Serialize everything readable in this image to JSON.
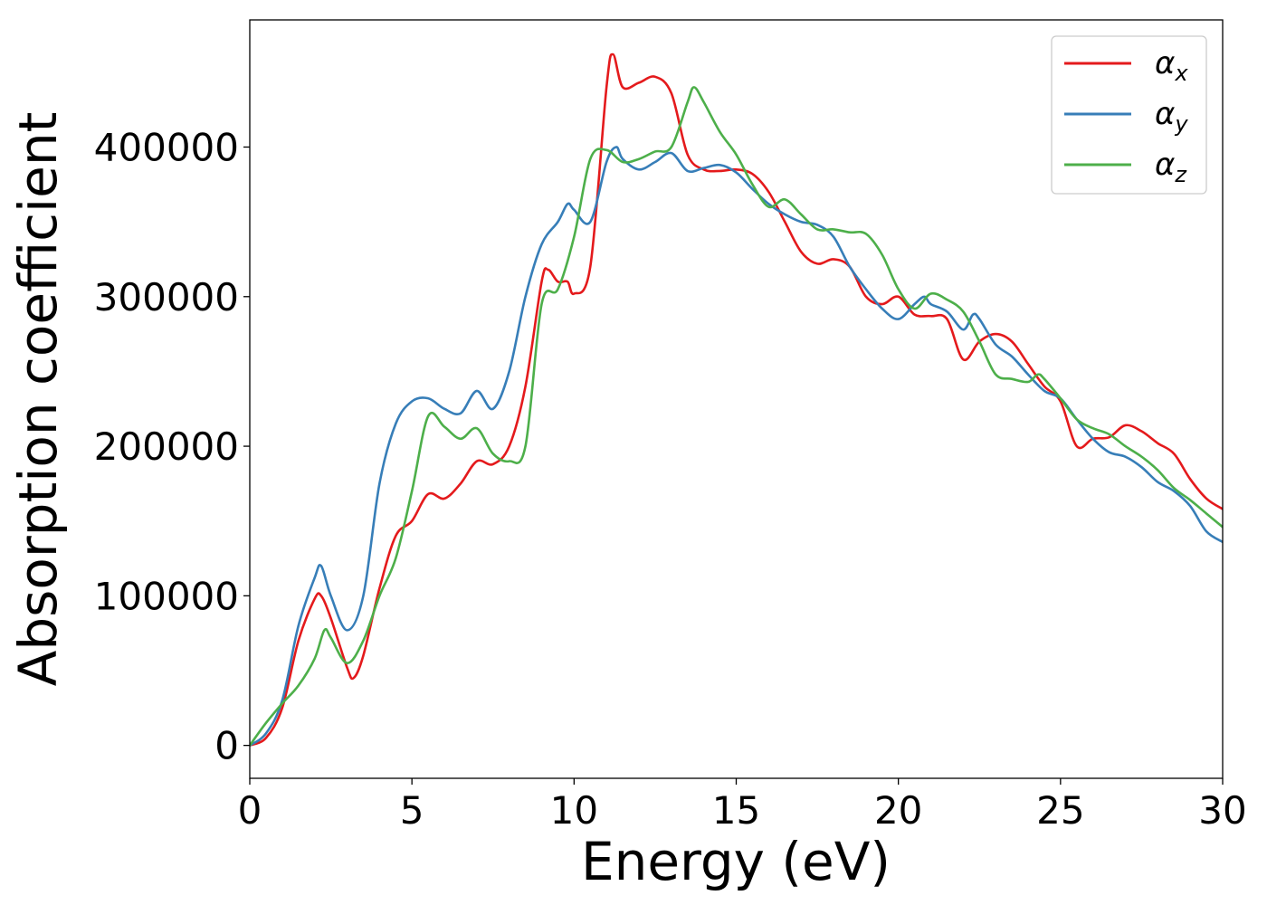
{
  "chart_data": {
    "type": "line",
    "title": "",
    "xlabel": "Energy (eV)",
    "ylabel": "Absorption coefficient",
    "xlim": [
      0,
      30
    ],
    "ylim": [
      -22000,
      485000
    ],
    "xticks": [
      0,
      5,
      10,
      15,
      20,
      25,
      30
    ],
    "yticks": [
      0,
      100000,
      200000,
      300000,
      400000
    ],
    "xtick_labels": [
      "0",
      "5",
      "10",
      "15",
      "20",
      "25",
      "30"
    ],
    "ytick_labels": [
      "0",
      "100000",
      "200000",
      "300000",
      "400000"
    ],
    "grid": false,
    "legend": {
      "position": "top-right"
    },
    "series": [
      {
        "name": "α",
        "sub": "x",
        "color": "#e41a1c",
        "x": [
          0,
          0.5,
          1,
          1.5,
          2,
          2.2,
          2.5,
          3,
          3.2,
          3.5,
          4,
          4.5,
          5,
          5.5,
          6,
          6.5,
          7,
          7.5,
          8,
          8.5,
          9,
          9.2,
          9.5,
          9.8,
          10,
          10.5,
          11,
          11.2,
          11.5,
          12,
          12.5,
          13,
          13.5,
          14,
          14.5,
          15,
          15.5,
          16,
          16.5,
          17,
          17.5,
          18,
          18.5,
          19,
          19.5,
          20,
          20.5,
          21,
          21.5,
          22,
          22.5,
          23,
          23.5,
          24,
          24.5,
          25,
          25.5,
          26,
          26.5,
          27,
          27.5,
          28,
          28.5,
          29,
          29.5,
          30
        ],
        "y": [
          0,
          5000,
          25000,
          70000,
          98000,
          100000,
          85000,
          52000,
          45000,
          60000,
          105000,
          140000,
          150000,
          168000,
          165000,
          175000,
          190000,
          188000,
          200000,
          240000,
          310000,
          318000,
          310000,
          310000,
          302000,
          320000,
          440000,
          462000,
          440000,
          443000,
          447000,
          436000,
          395000,
          385000,
          384000,
          385000,
          382000,
          370000,
          350000,
          330000,
          322000,
          325000,
          320000,
          300000,
          295000,
          300000,
          288000,
          287000,
          285000,
          258000,
          270000,
          275000,
          270000,
          255000,
          240000,
          230000,
          200000,
          205000,
          206000,
          214000,
          210000,
          202000,
          195000,
          178000,
          165000,
          158000
        ]
      },
      {
        "name": "α",
        "sub": "y",
        "color": "#377eb8",
        "x": [
          0,
          0.5,
          1,
          1.5,
          2,
          2.2,
          2.5,
          3,
          3.5,
          4,
          4.5,
          5,
          5.5,
          6,
          6.5,
          7,
          7.5,
          8,
          8.5,
          9,
          9.5,
          9.8,
          10,
          10.5,
          11,
          11.3,
          11.5,
          12,
          12.5,
          13,
          13.5,
          14,
          14.5,
          15,
          15.5,
          16,
          16.5,
          17,
          17.5,
          18,
          18.5,
          19,
          19.5,
          20,
          20.5,
          20.8,
          21,
          21.5,
          22,
          22.3,
          22.5,
          23,
          23.5,
          24,
          24.5,
          25,
          25.5,
          26,
          26.5,
          27,
          27.5,
          28,
          28.5,
          29,
          29.5,
          30
        ],
        "y": [
          0,
          8000,
          30000,
          80000,
          112000,
          120000,
          100000,
          77000,
          100000,
          175000,
          215000,
          230000,
          232000,
          225000,
          222000,
          237000,
          225000,
          250000,
          300000,
          335000,
          350000,
          362000,
          358000,
          350000,
          390000,
          400000,
          392000,
          385000,
          390000,
          396000,
          384000,
          386000,
          388000,
          383000,
          372000,
          362000,
          355000,
          350000,
          348000,
          340000,
          320000,
          305000,
          292000,
          285000,
          295000,
          300000,
          295000,
          290000,
          278000,
          288000,
          285000,
          268000,
          260000,
          248000,
          237000,
          232000,
          218000,
          205000,
          196000,
          193000,
          186000,
          176000,
          170000,
          160000,
          143000,
          136000
        ]
      },
      {
        "name": "α",
        "sub": "z",
        "color": "#4daf4a",
        "x": [
          0,
          0.5,
          1,
          1.5,
          2,
          2.3,
          2.5,
          3,
          3.5,
          4,
          4.5,
          5,
          5.5,
          6,
          6.5,
          7,
          7.5,
          8,
          8.5,
          9,
          9.5,
          10,
          10.5,
          11,
          11.5,
          12,
          12.5,
          13,
          13.5,
          13.7,
          14,
          14.5,
          15,
          15.5,
          16,
          16.5,
          17,
          17.5,
          18,
          18.5,
          19,
          19.5,
          20,
          20.5,
          21,
          21.5,
          22,
          22.5,
          23,
          23.5,
          24,
          24.3,
          24.5,
          25,
          25.5,
          26,
          26.5,
          27,
          27.5,
          28,
          28.5,
          29,
          29.5,
          30
        ],
        "y": [
          0,
          15000,
          28000,
          40000,
          58000,
          77000,
          72000,
          55000,
          70000,
          100000,
          125000,
          170000,
          220000,
          213000,
          205000,
          212000,
          195000,
          190000,
          200000,
          295000,
          305000,
          340000,
          392000,
          398000,
          390000,
          392000,
          397000,
          400000,
          430000,
          440000,
          430000,
          410000,
          395000,
          375000,
          360000,
          365000,
          355000,
          345000,
          345000,
          343000,
          342000,
          328000,
          305000,
          292000,
          302000,
          298000,
          290000,
          270000,
          248000,
          245000,
          243000,
          248000,
          245000,
          232000,
          218000,
          212000,
          208000,
          200000,
          193000,
          184000,
          172000,
          164000,
          155000,
          146000
        ]
      }
    ]
  }
}
